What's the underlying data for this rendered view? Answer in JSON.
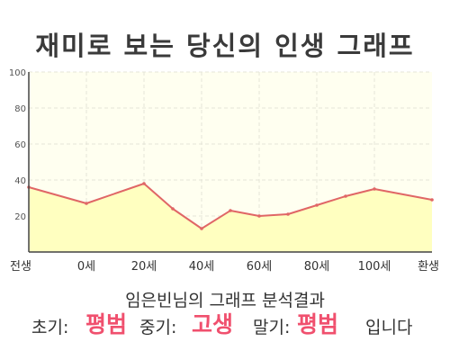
{
  "title": "재미로 보는 당신의 인생 그래프",
  "caption": "임은빈님의 그래프 분석결과",
  "summary": {
    "early_label": "초기:",
    "early_value": "평범",
    "middle_label": "중기:",
    "middle_value": "고생",
    "late_label": "말기:",
    "late_value": "평범",
    "ending": "입니다"
  },
  "colors": {
    "line": "#e06666",
    "area": "#ffffc0",
    "plot_background": "#fffff0",
    "highlight": "#f0506e"
  },
  "chart_data": {
    "type": "area",
    "title": "재미로 보는 당신의 인생 그래프",
    "xlabel": "",
    "ylabel": "",
    "ylim": [
      0,
      100
    ],
    "yticks": [
      100,
      80,
      60,
      40,
      20
    ],
    "xticks": [
      "전생",
      "0세",
      "20세",
      "40세",
      "60세",
      "80세",
      "100세",
      "환생"
    ],
    "x": [
      -20,
      0,
      20,
      30,
      40,
      50,
      60,
      70,
      80,
      90,
      100,
      120
    ],
    "values": [
      36,
      27,
      38,
      24,
      13,
      23,
      20,
      21,
      26,
      31,
      35,
      29
    ],
    "grid": true,
    "legend": "none"
  }
}
